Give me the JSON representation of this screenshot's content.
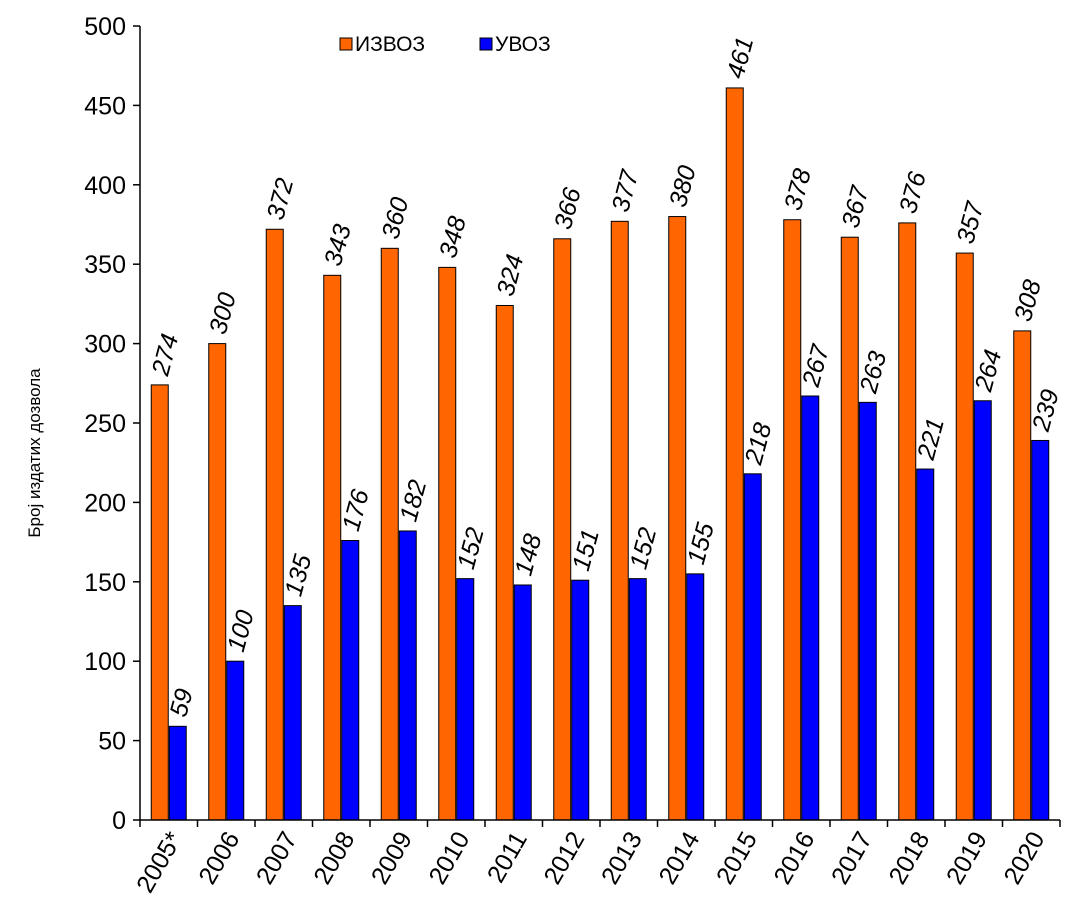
{
  "chart_data": {
    "type": "bar",
    "title": "",
    "xlabel": "",
    "ylabel": "Број издатих дозвола",
    "ylim": [
      0,
      500
    ],
    "yticks": [
      0,
      50,
      100,
      150,
      200,
      250,
      300,
      350,
      400,
      450,
      500
    ],
    "grid": false,
    "legend_position": "top-center",
    "categories": [
      "2005*",
      "2006",
      "2007",
      "2008",
      "2009",
      "2010",
      "2011",
      "2012",
      "2013",
      "2014",
      "2015",
      "2016",
      "2017",
      "2018",
      "2019",
      "2020"
    ],
    "series": [
      {
        "name": "ИЗВОЗ",
        "color": "#ff6600",
        "values": [
          274,
          300,
          372,
          343,
          360,
          348,
          324,
          366,
          377,
          380,
          461,
          378,
          367,
          376,
          357,
          308
        ]
      },
      {
        "name": "УВОЗ",
        "color": "#0000ff",
        "values": [
          59,
          100,
          135,
          176,
          182,
          152,
          148,
          151,
          152,
          155,
          218,
          267,
          263,
          221,
          264,
          239
        ]
      }
    ],
    "data_label_style": "italic, rotated"
  }
}
